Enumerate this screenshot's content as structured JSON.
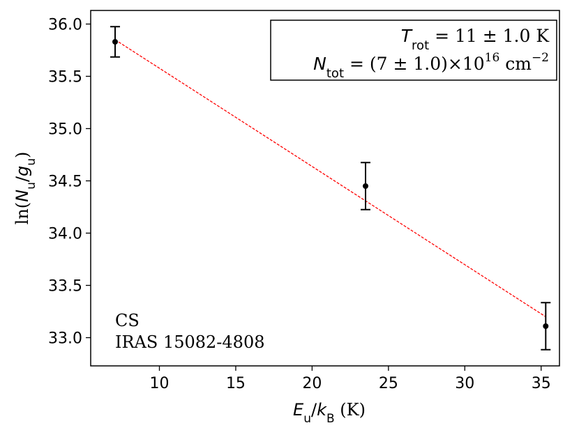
{
  "chart_data": {
    "type": "scatter",
    "xlabel": {
      "var1": "E",
      "sub1": "u",
      "slash": "/",
      "var2": "k",
      "sub2": "B",
      "unit": " (K)"
    },
    "ylabel": {
      "pre": "ln(",
      "var1": "N",
      "sub1": "u",
      "slash": "/",
      "var2": "g",
      "sub2": "u",
      "post": ")"
    },
    "xlim": [
      5.5,
      36.2
    ],
    "ylim": [
      32.73,
      36.13
    ],
    "x_ticks": [
      10,
      15,
      20,
      25,
      30,
      35
    ],
    "x_tick_labels": [
      "10",
      "15",
      "20",
      "25",
      "30",
      "35"
    ],
    "y_ticks": [
      33.0,
      33.5,
      34.0,
      34.5,
      35.0,
      35.5,
      36.0
    ],
    "y_tick_labels": [
      "33.0",
      "33.5",
      "34.0",
      "34.5",
      "35.0",
      "35.5",
      "36.0"
    ],
    "series": [
      {
        "x": [
          7.1,
          23.5,
          35.3
        ],
        "y": [
          35.83,
          34.45,
          33.11
        ],
        "yerr": [
          0.145,
          0.225,
          0.225
        ],
        "color": "#000000"
      }
    ],
    "fit_line": {
      "x": [
        7.1,
        35.3
      ],
      "y": [
        35.85,
        33.2
      ],
      "color": "#ff0000",
      "style": "dashed"
    },
    "legend_box": {
      "line1": {
        "var": "T",
        "sub": "rot",
        "rest": " = 11 ± 1.0 K"
      },
      "line2": {
        "var": "N",
        "sub": "tot",
        "rest": " = (7 ± 1.0)×10",
        "exp": "16",
        "unit": " cm",
        "unit_exp": "−2"
      },
      "placement": "top-right"
    },
    "annotation": {
      "line1": "CS",
      "line2": "IRAS 15082-4808"
    }
  }
}
